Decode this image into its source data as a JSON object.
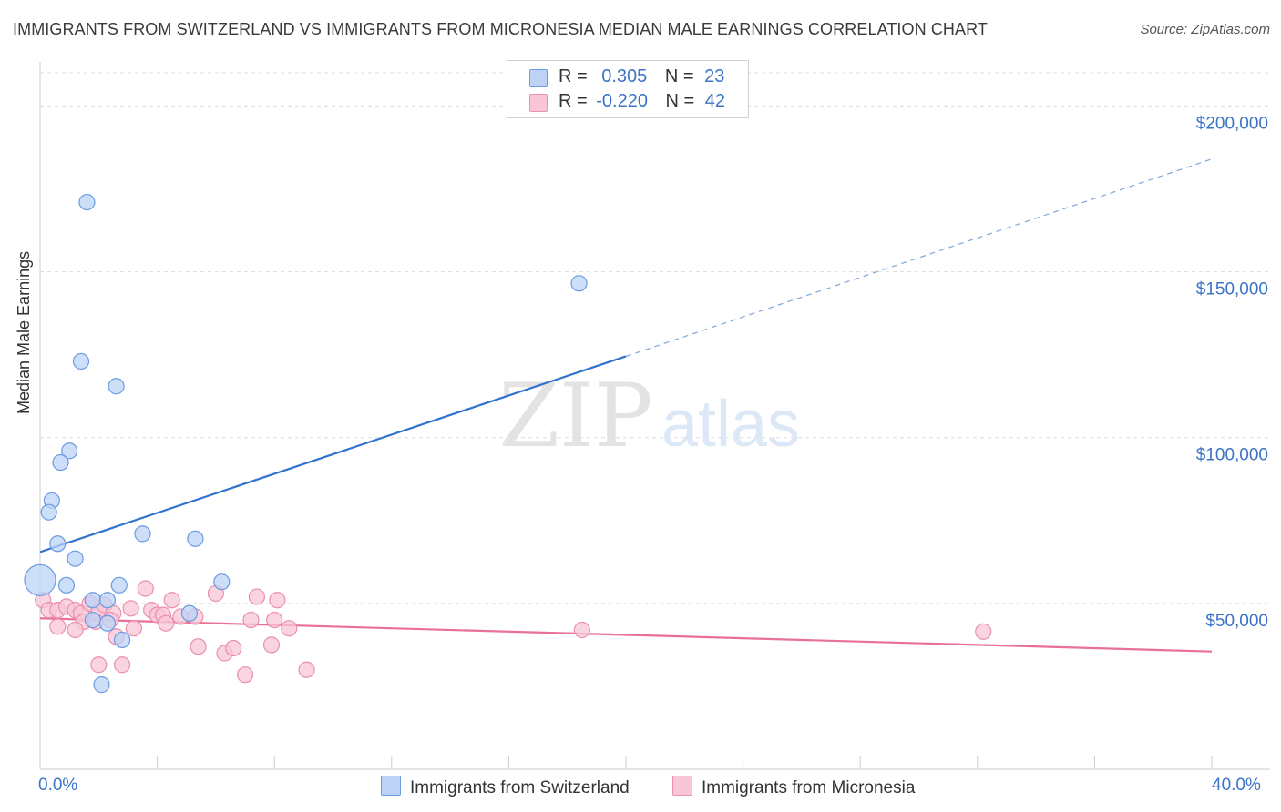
{
  "title": "IMMIGRANTS FROM SWITZERLAND VS IMMIGRANTS FROM MICRONESIA MEDIAN MALE EARNINGS CORRELATION CHART",
  "source": "Source: ZipAtlas.com",
  "watermark": {
    "zip": "ZIP",
    "atlas": "atlas"
  },
  "colors": {
    "blue_fill": "#bcd3f5",
    "blue_stroke": "#6b9be0",
    "blue_line": "#2f72d0",
    "pink_fill": "#f8c6d6",
    "pink_stroke": "#ea8fae",
    "pink_line": "#e8709a",
    "tick_text": "#3b74c7",
    "grid": "#dcdcdc"
  },
  "legend_top": {
    "rows": [
      {
        "r_label": "R =",
        "r_value": "0.305",
        "n_label": "N =",
        "n_value": "23"
      },
      {
        "r_label": "R =",
        "r_value": "-0.220",
        "n_label": "N =",
        "n_value": "42"
      }
    ]
  },
  "chart_data": {
    "type": "scatter",
    "title": "IMMIGRANTS FROM SWITZERLAND VS IMMIGRANTS FROM MICRONESIA MEDIAN MALE EARNINGS CORRELATION CHART",
    "xlabel": "",
    "ylabel": "Median Male Earnings",
    "xlim": [
      0,
      40
    ],
    "ylim": [
      0,
      210000
    ],
    "x_tick_labels": [
      "0.0%",
      "40.0%"
    ],
    "y_ticks": [
      50000,
      100000,
      150000,
      200000
    ],
    "y_tick_labels": [
      "$50,000",
      "$100,000",
      "$150,000",
      "$200,000"
    ],
    "grid": true,
    "series": [
      {
        "name": "Immigrants from Switzerland",
        "color": "blue",
        "r": 0.305,
        "n": 23,
        "points": [
          {
            "x": 1.6,
            "y": 171000
          },
          {
            "x": 18.4,
            "y": 146500
          },
          {
            "x": 1.4,
            "y": 123000
          },
          {
            "x": 2.6,
            "y": 115500
          },
          {
            "x": 1.0,
            "y": 96000
          },
          {
            "x": 0.7,
            "y": 92500
          },
          {
            "x": 0.4,
            "y": 81000
          },
          {
            "x": 0.3,
            "y": 77500
          },
          {
            "x": 3.5,
            "y": 71000
          },
          {
            "x": 5.3,
            "y": 69500
          },
          {
            "x": 0.6,
            "y": 68000
          },
          {
            "x": 1.2,
            "y": 63500
          },
          {
            "x": 0.0,
            "y": 57000,
            "size": "large"
          },
          {
            "x": 0.9,
            "y": 55500
          },
          {
            "x": 6.2,
            "y": 56500
          },
          {
            "x": 2.7,
            "y": 55500
          },
          {
            "x": 1.8,
            "y": 51000
          },
          {
            "x": 2.3,
            "y": 51000
          },
          {
            "x": 5.1,
            "y": 47000
          },
          {
            "x": 1.8,
            "y": 45000
          },
          {
            "x": 2.3,
            "y": 44000
          },
          {
            "x": 2.8,
            "y": 39000
          },
          {
            "x": 2.1,
            "y": 25500
          }
        ],
        "trend": {
          "x0": 0,
          "y0": 65500,
          "x1": 20,
          "y1": 124500,
          "dashed_to_x": 40,
          "dashed_to_y": 184000
        }
      },
      {
        "name": "Immigrants from Micronesia",
        "color": "pink",
        "r": -0.22,
        "n": 42,
        "points": [
          {
            "x": 0.1,
            "y": 51000
          },
          {
            "x": 0.3,
            "y": 48000
          },
          {
            "x": 0.6,
            "y": 48000
          },
          {
            "x": 0.9,
            "y": 49000
          },
          {
            "x": 1.2,
            "y": 48000
          },
          {
            "x": 1.4,
            "y": 47000
          },
          {
            "x": 1.7,
            "y": 50000
          },
          {
            "x": 2.0,
            "y": 47500
          },
          {
            "x": 2.2,
            "y": 49500
          },
          {
            "x": 2.5,
            "y": 47000
          },
          {
            "x": 3.1,
            "y": 48500
          },
          {
            "x": 3.6,
            "y": 54500
          },
          {
            "x": 3.8,
            "y": 48000
          },
          {
            "x": 4.0,
            "y": 46500
          },
          {
            "x": 4.2,
            "y": 46500
          },
          {
            "x": 4.5,
            "y": 51000
          },
          {
            "x": 4.8,
            "y": 46000
          },
          {
            "x": 5.3,
            "y": 46000
          },
          {
            "x": 6.0,
            "y": 53000
          },
          {
            "x": 7.4,
            "y": 52000
          },
          {
            "x": 8.1,
            "y": 51000
          },
          {
            "x": 0.6,
            "y": 43000
          },
          {
            "x": 1.5,
            "y": 44500
          },
          {
            "x": 1.9,
            "y": 44500
          },
          {
            "x": 2.4,
            "y": 45000
          },
          {
            "x": 1.2,
            "y": 42000
          },
          {
            "x": 2.6,
            "y": 40000
          },
          {
            "x": 3.2,
            "y": 42500
          },
          {
            "x": 4.3,
            "y": 44000
          },
          {
            "x": 7.2,
            "y": 45000
          },
          {
            "x": 8.0,
            "y": 45000
          },
          {
            "x": 8.5,
            "y": 42500
          },
          {
            "x": 5.4,
            "y": 37000
          },
          {
            "x": 6.3,
            "y": 35000
          },
          {
            "x": 6.6,
            "y": 36500
          },
          {
            "x": 7.9,
            "y": 37500
          },
          {
            "x": 2.0,
            "y": 31500
          },
          {
            "x": 2.8,
            "y": 31500
          },
          {
            "x": 7.0,
            "y": 28500
          },
          {
            "x": 9.1,
            "y": 30000
          },
          {
            "x": 18.5,
            "y": 42000
          },
          {
            "x": 32.2,
            "y": 41500
          }
        ],
        "trend": {
          "x0": 0,
          "y0": 45500,
          "x1": 40,
          "y1": 35500
        }
      }
    ]
  },
  "bottom_legend": {
    "items": [
      {
        "label": "Immigrants from Switzerland"
      },
      {
        "label": "Immigrants from Micronesia"
      }
    ]
  }
}
